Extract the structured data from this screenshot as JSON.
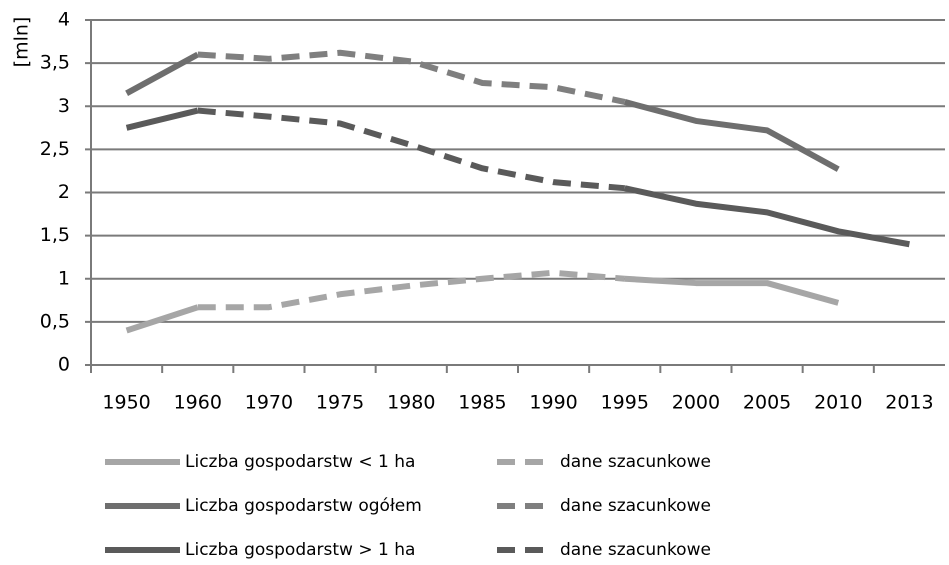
{
  "chart_data": {
    "type": "line",
    "y_label": "[mln]",
    "categories": [
      "1950",
      "1960",
      "1970",
      "1975",
      "1980",
      "1985",
      "1990",
      "1995",
      "2000",
      "2005",
      "2010",
      "2013"
    ],
    "ylim": [
      0,
      4
    ],
    "yticks": [
      0,
      {
        "value": 0.5,
        "label": "0,5"
      },
      1,
      {
        "value": 1.5,
        "label": "1,5"
      },
      2,
      {
        "value": 2.5,
        "label": "2,5"
      },
      3,
      {
        "value": 3.5,
        "label": "3,5"
      },
      4
    ],
    "grid": true,
    "series": [
      {
        "name": "Liczba gospodarstw < 1 ha",
        "color": "#a6a6a6",
        "dashed": false,
        "values": [
          0.4,
          0.67,
          null,
          null,
          null,
          null,
          null,
          1.0,
          0.95,
          0.95,
          0.72,
          null
        ]
      },
      {
        "name": "dane szacunkowe",
        "color": "#a6a6a6",
        "dashed": true,
        "values": [
          null,
          0.67,
          0.67,
          0.82,
          0.92,
          1.0,
          1.07,
          1.0,
          null,
          null,
          null,
          null
        ]
      },
      {
        "name": "Liczba gospodarstw ogółem",
        "color": "#6e6e6e",
        "dashed": false,
        "values": [
          3.15,
          3.6,
          null,
          null,
          null,
          null,
          null,
          3.05,
          2.83,
          2.72,
          2.27,
          null
        ]
      },
      {
        "name": "dane szacunkowe",
        "color": "#7f7f7f",
        "dashed": true,
        "values": [
          null,
          3.6,
          3.55,
          3.62,
          3.52,
          3.27,
          3.22,
          3.05,
          null,
          null,
          null,
          null
        ]
      },
      {
        "name": "Liczba gospodarstw > 1 ha",
        "color": "#5a5a5a",
        "dashed": false,
        "values": [
          2.75,
          2.95,
          null,
          null,
          null,
          null,
          null,
          2.05,
          1.87,
          1.77,
          1.55,
          1.4
        ]
      },
      {
        "name": "dane szacunkowe",
        "color": "#5a5a5a",
        "dashed": true,
        "values": [
          null,
          2.95,
          2.88,
          2.8,
          2.55,
          2.28,
          2.12,
          2.05,
          null,
          null,
          null,
          null
        ]
      }
    ]
  }
}
